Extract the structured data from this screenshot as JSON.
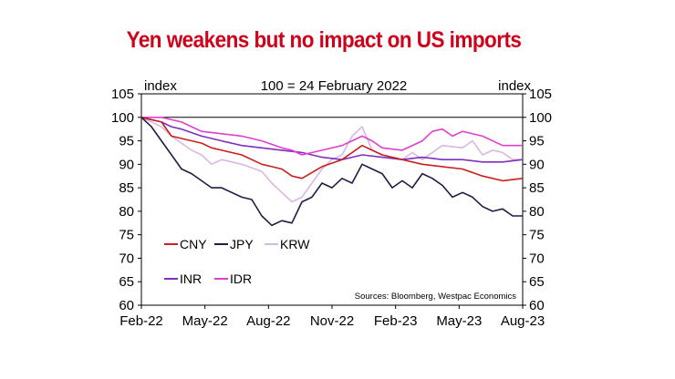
{
  "chart_data": {
    "type": "line",
    "title": "Yen weakens but no impact on US imports",
    "subtitle": "100 = 24 February 2022",
    "ylabel_left": "index",
    "ylabel_right": "index",
    "source": "Sources: Bloomberg, Westpac Economics",
    "ylim": [
      60,
      105
    ],
    "yticks": [
      60,
      65,
      70,
      75,
      80,
      85,
      90,
      95,
      100,
      105
    ],
    "reference_line": 100,
    "x_tick_labels": [
      "Feb-22",
      "May-22",
      "Aug-22",
      "Nov-22",
      "Feb-23",
      "May-23",
      "Aug-23"
    ],
    "x_index_range": [
      0,
      19
    ],
    "legend": [
      "CNY",
      "JPY",
      "KRW",
      "INR",
      "IDR"
    ],
    "grid": false,
    "series": [
      {
        "name": "CNY",
        "color": "#c8201e",
        "x": [
          0,
          1,
          1.5,
          2,
          3,
          3.5,
          4,
          5,
          6,
          6.5,
          7,
          7.5,
          8,
          9,
          10,
          11,
          11.5,
          12,
          13,
          14,
          15,
          16,
          17,
          18,
          19
        ],
        "values": [
          100,
          99,
          96,
          95.5,
          94.5,
          93.5,
          93,
          92,
          90,
          89.5,
          89,
          87.5,
          87,
          89.5,
          91,
          94,
          93,
          92,
          91,
          90,
          89.5,
          89,
          87.5,
          86.5,
          87
        ]
      },
      {
        "name": "JPY",
        "color": "#1d1d47",
        "x": [
          0,
          0.5,
          1,
          1.5,
          2,
          2.5,
          3,
          3.5,
          4,
          5,
          5.5,
          6,
          6.5,
          7,
          7.5,
          8,
          8.5,
          9,
          9.5,
          10,
          10.5,
          11,
          11.5,
          12,
          12.5,
          13,
          13.5,
          14,
          14.5,
          15,
          15.5,
          16,
          16.5,
          17,
          17.5,
          18,
          18.5,
          19
        ],
        "values": [
          100,
          98,
          95,
          92,
          89,
          88,
          86.5,
          85,
          85,
          83,
          82.5,
          79,
          77,
          78,
          77.5,
          82,
          83,
          86,
          85,
          87,
          86,
          90,
          89,
          88,
          85,
          86.5,
          85,
          88,
          87,
          85.5,
          83,
          84,
          83,
          81,
          80,
          80.5,
          79,
          79
        ]
      },
      {
        "name": "KRW",
        "color": "#d9b8e0",
        "x": [
          0,
          0.5,
          1,
          1.5,
          2,
          2.5,
          3,
          3.5,
          4,
          5,
          6,
          6.5,
          7,
          7.5,
          8,
          8.5,
          9,
          9.5,
          10,
          10.5,
          11,
          11.5,
          12,
          12.5,
          13,
          13.5,
          14,
          15,
          16,
          16.5,
          17,
          17.5,
          18,
          18.5,
          19
        ],
        "values": [
          100,
          99,
          98,
          96,
          94.5,
          93,
          92,
          90,
          91,
          90,
          88.5,
          86,
          84,
          82,
          83,
          86,
          89,
          91,
          92,
          96,
          98,
          93,
          92,
          91.5,
          91,
          92.5,
          91,
          94,
          93.5,
          95,
          92,
          93,
          92.5,
          91,
          91
        ]
      },
      {
        "name": "INR",
        "color": "#7e2fbd",
        "x": [
          0,
          1,
          1.5,
          2,
          3,
          4,
          5,
          6,
          7,
          8,
          9,
          10,
          11,
          12,
          13,
          14,
          15,
          16,
          17,
          18,
          19
        ],
        "values": [
          100,
          99,
          98,
          97.5,
          96,
          95,
          94,
          93.5,
          93,
          92.5,
          91.5,
          91,
          92,
          91.5,
          91,
          91.5,
          91,
          91,
          90.5,
          90.5,
          91
        ]
      },
      {
        "name": "IDR",
        "color": "#e040cc",
        "x": [
          0,
          1,
          2,
          2.5,
          3,
          4,
          5,
          6,
          7,
          7.5,
          8,
          9,
          10,
          10.5,
          11,
          11.5,
          12,
          13,
          14,
          14.5,
          15,
          15.5,
          16,
          17,
          18,
          19
        ],
        "values": [
          100,
          100,
          99,
          98,
          97,
          96.5,
          96,
          95,
          93.5,
          93,
          92,
          93,
          94,
          95,
          96,
          95,
          93.5,
          93,
          95,
          97,
          97.5,
          96,
          97,
          96,
          94,
          94
        ]
      }
    ]
  }
}
